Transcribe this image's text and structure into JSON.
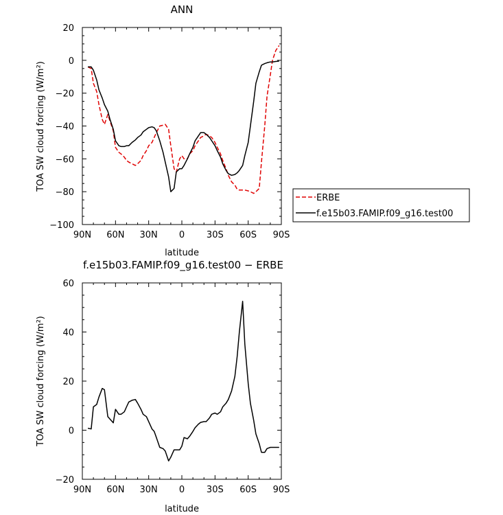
{
  "chart_data": [
    {
      "type": "line",
      "title": "ANN",
      "xlabel": "latitude",
      "ylabel": "TOA SW cloud forcing (W/m²)",
      "xlim": [
        90,
        -90
      ],
      "ylim": [
        -100,
        20
      ],
      "x_ticks": [
        90,
        60,
        30,
        0,
        -30,
        -60,
        -90
      ],
      "x_tick_labels": [
        "90N",
        "60N",
        "30N",
        "0",
        "30S",
        "60S",
        "90S"
      ],
      "y_ticks": [
        20,
        0,
        -20,
        -40,
        -60,
        -80,
        -100
      ],
      "y_tick_labels": [
        "20",
        "0",
        "−20",
        "−40",
        "−60",
        "−80",
        "−100"
      ],
      "grid": false,
      "legend": "right",
      "series": [
        {
          "name": "ERBE",
          "color": "#e00000",
          "dash": "dashed",
          "x": [
            85,
            82,
            80,
            77,
            75,
            72,
            70,
            67,
            65,
            62,
            60,
            57,
            55,
            52,
            50,
            48,
            45,
            42,
            40,
            37,
            35,
            32,
            30,
            27,
            25,
            23,
            20,
            17,
            15,
            12,
            10,
            7,
            5,
            2,
            0,
            -2,
            -5,
            -7,
            -10,
            -12,
            -15,
            -17,
            -20,
            -22,
            -25,
            -27,
            -30,
            -32,
            -35,
            -37,
            -40,
            -42,
            -45,
            -48,
            -50,
            -52,
            -55,
            -57,
            -60,
            -62,
            -65,
            -67,
            -70,
            -72,
            -75,
            -77,
            -80,
            -82,
            -85,
            -88
          ],
          "y": [
            -4,
            -5,
            -14,
            -19,
            -27,
            -36,
            -39,
            -33,
            -37,
            -43,
            -53,
            -56,
            -57,
            -59,
            -61,
            -62,
            -63,
            -64,
            -63,
            -61,
            -58,
            -55,
            -52,
            -50,
            -47,
            -44,
            -40,
            -39.5,
            -39,
            -42,
            -52,
            -66,
            -68,
            -60,
            -58,
            -60,
            -60,
            -57,
            -55,
            -52,
            -49,
            -47,
            -46,
            -45,
            -46,
            -47,
            -50,
            -53,
            -57,
            -61,
            -66,
            -70,
            -74,
            -76,
            -78.5,
            -79,
            -79,
            -79,
            -79.5,
            -80,
            -81,
            -80,
            -78,
            -62,
            -40,
            -22,
            -9,
            0,
            6,
            9
          ]
        },
        {
          "name": "f.e15b03.FAMIP.f09_g16.test00",
          "color": "#000000",
          "dash": "solid",
          "x": [
            85,
            82,
            80,
            77,
            75,
            72,
            70,
            67,
            65,
            62,
            60,
            57,
            55,
            52,
            50,
            48,
            45,
            42,
            40,
            37,
            35,
            32,
            30,
            27,
            25,
            23,
            20,
            17,
            15,
            12,
            10,
            7,
            5,
            2,
            0,
            -2,
            -5,
            -7,
            -10,
            -12,
            -15,
            -17,
            -20,
            -22,
            -25,
            -27,
            -30,
            -32,
            -35,
            -37,
            -40,
            -42,
            -45,
            -48,
            -50,
            -52,
            -55,
            -57,
            -60,
            -62,
            -65,
            -67,
            -70,
            -72,
            -75,
            -77,
            -80,
            -82,
            -85,
            -88
          ],
          "y": [
            -4,
            -4,
            -6,
            -12,
            -18,
            -23,
            -27,
            -31,
            -36,
            -42,
            -49,
            -52,
            -52.5,
            -52.5,
            -52,
            -52,
            -50,
            -48.5,
            -47,
            -45.5,
            -43.5,
            -42,
            -41,
            -40.5,
            -41,
            -43,
            -49,
            -56,
            -62,
            -71,
            -80,
            -78,
            -68,
            -66,
            -66,
            -64,
            -60,
            -57,
            -53,
            -49,
            -46,
            -44,
            -44,
            -45,
            -47,
            -49,
            -52,
            -55,
            -59,
            -63,
            -67,
            -69,
            -70,
            -69.5,
            -68.5,
            -67,
            -64,
            -58,
            -50,
            -40,
            -25,
            -14,
            -7,
            -3,
            -2,
            -1.5,
            -1,
            -1,
            -0.7,
            -0.5
          ]
        }
      ]
    },
    {
      "type": "line",
      "title": "f.e15b03.FAMIP.f09_g16.test00 − ERBE",
      "xlabel": "latitude",
      "ylabel": "TOA SW cloud forcing (W/m²)",
      "xlim": [
        90,
        -90
      ],
      "ylim": [
        -20,
        60
      ],
      "x_ticks": [
        90,
        60,
        30,
        0,
        -30,
        -60,
        -90
      ],
      "x_tick_labels": [
        "90N",
        "60N",
        "30N",
        "0",
        "30S",
        "60S",
        "90S"
      ],
      "y_ticks": [
        60,
        40,
        20,
        0,
        -20
      ],
      "y_tick_labels": [
        "60",
        "40",
        "20",
        "0",
        "−20"
      ],
      "grid": false,
      "series": [
        {
          "name": "",
          "color": "#000000",
          "dash": "solid",
          "x": [
            85,
            82,
            80,
            77,
            75,
            72,
            70,
            67,
            65,
            62,
            60,
            57,
            55,
            52,
            50,
            48,
            45,
            42,
            40,
            37,
            35,
            32,
            30,
            27,
            25,
            23,
            20,
            17,
            15,
            12,
            10,
            7,
            5,
            2,
            0,
            -2,
            -5,
            -7,
            -10,
            -12,
            -15,
            -17,
            -20,
            -22,
            -25,
            -27,
            -30,
            -32,
            -35,
            -37,
            -40,
            -42,
            -45,
            -48,
            -50,
            -52,
            -55,
            -57,
            -60,
            -62,
            -65,
            -67,
            -70,
            -72,
            -75,
            -77,
            -80,
            -82,
            -85,
            -88
          ],
          "y": [
            0.8,
            0.5,
            9.5,
            10.5,
            13.5,
            17,
            16.5,
            5.5,
            4.5,
            3,
            8.5,
            6.5,
            6.5,
            7.5,
            9.5,
            11.5,
            12.2,
            12.5,
            11,
            8.5,
            6.5,
            5.5,
            3.5,
            0.5,
            -0.5,
            -3,
            -7,
            -7.5,
            -8.5,
            -12.5,
            -11,
            -8,
            -8,
            -8,
            -6.5,
            -3,
            -3.5,
            -2.5,
            -0.5,
            1,
            2.5,
            3.2,
            3.5,
            3.5,
            5,
            6.5,
            7,
            6.5,
            7.5,
            9.5,
            11,
            12.5,
            16,
            22,
            30,
            40,
            52.5,
            35,
            19,
            11,
            4,
            -1.5,
            -5.5,
            -9,
            -9,
            -7.5,
            -7,
            -7,
            -7,
            -7
          ]
        }
      ]
    }
  ]
}
